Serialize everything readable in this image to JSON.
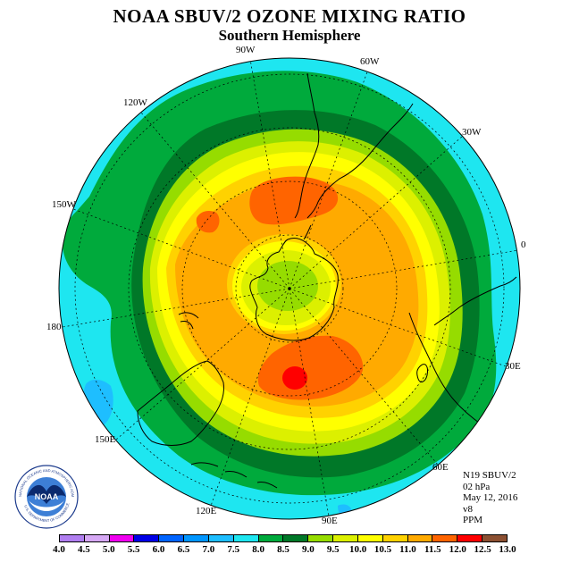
{
  "title": "NOAA SBUV/2 OZONE MIXING RATIO",
  "subtitle": "Southern Hemisphere",
  "longitude_labels": {
    "lon_90w": "90W",
    "lon_60w": "60W",
    "lon_120w": "120W",
    "lon_30w": "30W",
    "lon_150w": "150W",
    "lon_0": "0",
    "lon_180": "180",
    "lon_30e": "30E",
    "lon_150e": "150E",
    "lon_60e": "60E",
    "lon_120e": "120E",
    "lon_90e": "90E"
  },
  "info": {
    "satellite": "N19 SBUV/2",
    "level": "02 hPa",
    "date": "May 12, 2016",
    "version": "v8",
    "units": "PPM"
  },
  "logo": {
    "text": "NOAA",
    "ring_text": "NATIONAL OCEANIC AND ATMOSPHERIC ADMINISTRATION",
    "ring_text_bottom": "U.S. DEPARTMENT OF COMMERCE"
  },
  "colorbar": {
    "ticks": [
      "4.0",
      "4.5",
      "5.0",
      "5.5",
      "6.0",
      "6.5",
      "7.0",
      "7.5",
      "8.0",
      "8.5",
      "9.0",
      "9.5",
      "10.0",
      "10.5",
      "11.0",
      "11.5",
      "12.0",
      "12.5",
      "13.0"
    ],
    "colors": [
      "#b07ef0",
      "#d6a8f5",
      "#f000f0",
      "#0000e6",
      "#0064ff",
      "#0096ff",
      "#1ebeff",
      "#1ee6f0",
      "#00aa3c",
      "#007828",
      "#96dc00",
      "#dcf000",
      "#ffff00",
      "#ffd200",
      "#ffaa00",
      "#ff6400",
      "#ff0000",
      "#8c5032"
    ]
  },
  "map_field": {
    "projection": "south polar stereographic",
    "levels_ppm": [
      7.5,
      8.0,
      8.5,
      9.0,
      9.5,
      10.0,
      10.5,
      11.0,
      11.5,
      12.0
    ]
  }
}
